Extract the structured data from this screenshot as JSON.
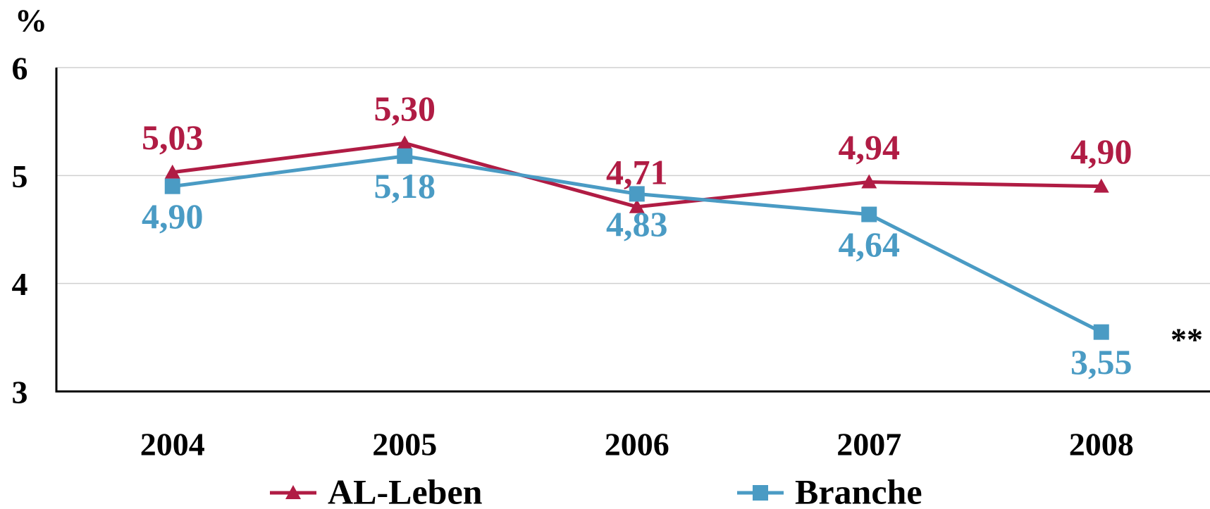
{
  "chart_data": {
    "type": "line",
    "y_label": "%",
    "categories": [
      "2004",
      "2005",
      "2006",
      "2007",
      "2008"
    ],
    "series": [
      {
        "name": "AL-Leben",
        "color": "#b01c44",
        "marker": "triangle",
        "values": [
          5.03,
          5.3,
          4.71,
          4.94,
          4.9
        ],
        "value_labels": [
          "5,03",
          "5,30",
          "4,71",
          "4,94",
          "4,90"
        ]
      },
      {
        "name": "Branche",
        "color": "#4a9bc4",
        "marker": "square",
        "values": [
          4.9,
          5.18,
          4.83,
          4.64,
          3.55
        ],
        "value_labels": [
          "4,90",
          "5,18",
          "4,83",
          "4,64",
          "3,55"
        ]
      }
    ],
    "annotations": [
      "**"
    ],
    "ylim": [
      3,
      6
    ],
    "yticks": [
      3,
      4,
      5,
      6
    ],
    "grid": true
  }
}
